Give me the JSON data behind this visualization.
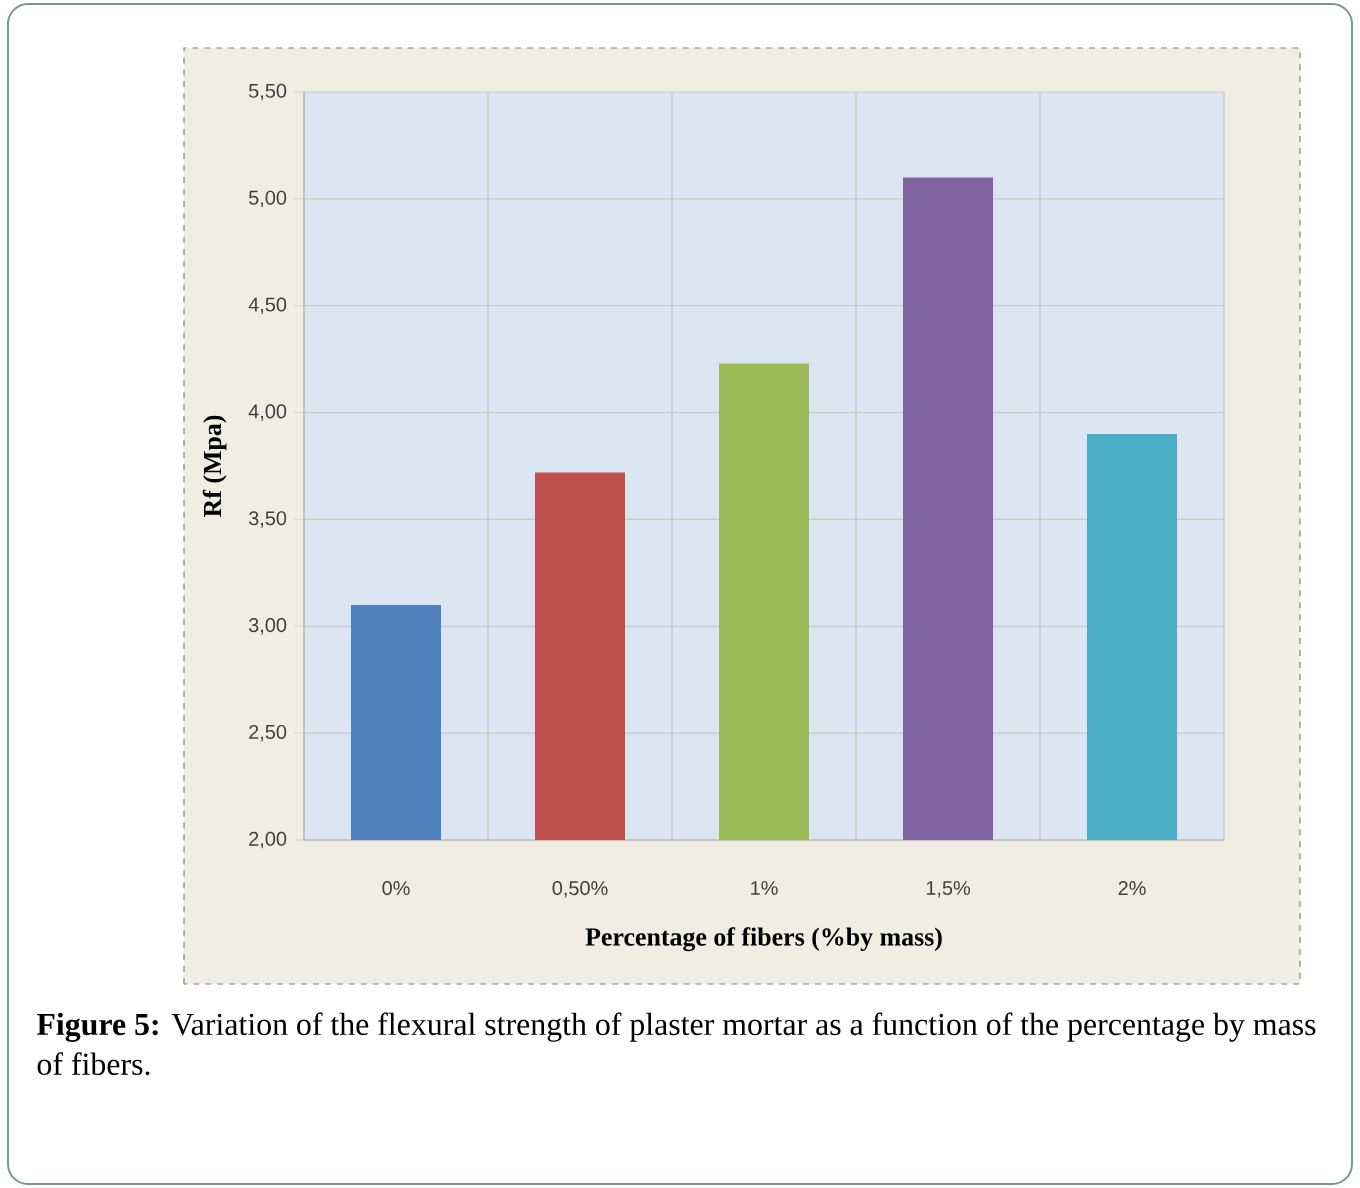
{
  "chart_data": {
    "type": "bar",
    "categories": [
      "0%",
      "0,50%",
      "1%",
      "1,5%",
      "2%"
    ],
    "values": [
      3.1,
      3.72,
      4.23,
      5.1,
      3.9
    ],
    "colors": [
      "#4f81bd",
      "#c0504d",
      "#9bbb59",
      "#8064a2",
      "#4bacc6"
    ],
    "xlabel": "Percentage of fibers (%by mass)",
    "ylabel": "Rf (Mpa)",
    "ylim": [
      2,
      5.5
    ],
    "yticks": [
      {
        "value": 2,
        "label": "2,00"
      },
      {
        "value": 2.5,
        "label": "2,50"
      },
      {
        "value": 3,
        "label": "3,00"
      },
      {
        "value": 3.5,
        "label": "3,50"
      },
      {
        "value": 4,
        "label": "4,00"
      },
      {
        "value": 4.5,
        "label": "4,50"
      },
      {
        "value": 5,
        "label": "5,00"
      },
      {
        "value": 5.5,
        "label": "5,50"
      }
    ],
    "grid": true,
    "annotations": [
      "**Figure 5:** Variation of the flexural strength of plaster mortar as a function of the percentage by mass of fibers."
    ]
  }
}
